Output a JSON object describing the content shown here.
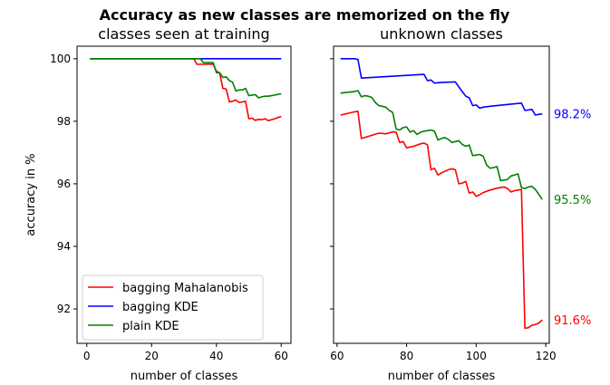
{
  "figure": {
    "suptitle": "Accuracy as new classes are memorized on the fly"
  },
  "chart_data": [
    {
      "type": "line",
      "title": "classes seen at training",
      "xlabel": "number of classes",
      "ylabel": "accuracy in %",
      "xlim": [
        -3,
        63
      ],
      "ylim": [
        90.9,
        100.4
      ],
      "xticks": [
        0,
        20,
        40,
        60
      ],
      "yticks": [
        92,
        94,
        96,
        98,
        100
      ],
      "grid": false,
      "legend": "lower-left",
      "series": [
        {
          "name": "bagging Mahalanobis",
          "color": "#ff0000",
          "x": [
            1,
            33,
            34,
            39,
            40,
            41,
            42,
            43,
            44,
            45,
            46,
            47,
            48,
            49,
            50,
            51,
            52,
            53,
            54,
            55,
            56,
            57,
            58,
            59,
            60
          ],
          "y": [
            100,
            100,
            99.82,
            99.83,
            99.6,
            99.55,
            99.05,
            99.03,
            98.62,
            98.64,
            98.68,
            98.6,
            98.62,
            98.64,
            98.08,
            98.1,
            98.03,
            98.06,
            98.05,
            98.08,
            98.02,
            98.05,
            98.08,
            98.12,
            98.15
          ]
        },
        {
          "name": "bagging KDE",
          "color": "#0000ff",
          "x": [
            1,
            60
          ],
          "y": [
            100,
            100
          ]
        },
        {
          "name": "plain KDE",
          "color": "#008000",
          "x": [
            1,
            35,
            36,
            39,
            40,
            41,
            42,
            43,
            44,
            45,
            46,
            47,
            48,
            49,
            50,
            51,
            52,
            53,
            54,
            55,
            56,
            57,
            58,
            59,
            60
          ],
          "y": [
            100,
            100,
            99.88,
            99.88,
            99.55,
            99.55,
            99.4,
            99.42,
            99.3,
            99.25,
            98.97,
            99.0,
            99.0,
            99.05,
            98.82,
            98.84,
            98.85,
            98.75,
            98.78,
            98.8,
            98.8,
            98.82,
            98.84,
            98.86,
            98.88
          ]
        }
      ]
    },
    {
      "type": "line",
      "title": "unknown classes",
      "xlabel": "number of classes",
      "ylabel": "",
      "xlim": [
        59,
        121
      ],
      "ylim": [
        90.9,
        100.4
      ],
      "xticks": [
        60,
        80,
        100,
        120
      ],
      "yticks": [
        92,
        94,
        96,
        98,
        100
      ],
      "grid": false,
      "series": [
        {
          "color": "#ff0000",
          "end_label": "91.6%",
          "x": [
            61,
            65,
            66,
            67,
            70,
            72,
            74,
            76,
            77,
            78,
            79,
            80,
            82,
            84,
            85,
            86,
            87,
            88,
            89,
            90,
            92,
            93,
            94,
            95,
            96,
            97,
            98,
            99,
            100,
            101,
            102,
            104,
            106,
            108,
            109,
            110,
            111,
            112,
            113,
            114,
            115,
            116,
            117,
            118,
            119
          ],
          "y": [
            98.2,
            98.3,
            98.32,
            97.45,
            97.55,
            97.62,
            97.6,
            97.66,
            97.65,
            97.32,
            97.35,
            97.15,
            97.2,
            97.28,
            97.3,
            97.25,
            96.45,
            96.5,
            96.28,
            96.35,
            96.45,
            96.48,
            96.45,
            96.0,
            96.02,
            96.08,
            95.7,
            95.74,
            95.6,
            95.65,
            95.72,
            95.8,
            95.86,
            95.9,
            95.85,
            95.74,
            95.78,
            95.8,
            95.82,
            91.38,
            91.4,
            91.48,
            91.5,
            91.55,
            91.65
          ]
        },
        {
          "color": "#0000ff",
          "end_label": "98.2%",
          "x": [
            61,
            65,
            66,
            67,
            85,
            86,
            87,
            88,
            90,
            92,
            94,
            95,
            96,
            97,
            98,
            99,
            100,
            101,
            102,
            104,
            113,
            114,
            115,
            116,
            117,
            118,
            119
          ],
          "y": [
            100,
            100,
            99.98,
            99.38,
            99.5,
            99.3,
            99.32,
            99.22,
            99.24,
            99.25,
            99.26,
            99.1,
            98.95,
            98.8,
            98.75,
            98.5,
            98.52,
            98.42,
            98.45,
            98.48,
            98.58,
            98.35,
            98.36,
            98.38,
            98.2,
            98.22,
            98.24
          ]
        },
        {
          "color": "#008000",
          "end_label": "95.5%",
          "x": [
            61,
            65,
            66,
            67,
            68,
            69,
            70,
            71,
            72,
            73,
            74,
            75,
            76,
            77,
            78,
            79,
            80,
            81,
            82,
            83,
            84,
            85,
            86,
            87,
            88,
            89,
            90,
            91,
            92,
            93,
            94,
            95,
            96,
            97,
            98,
            99,
            100,
            101,
            102,
            103,
            104,
            105,
            106,
            107,
            108,
            109,
            110,
            111,
            112,
            113,
            114,
            115,
            116,
            117,
            118,
            119
          ],
          "y": [
            98.9,
            98.95,
            98.98,
            98.78,
            98.82,
            98.8,
            98.76,
            98.6,
            98.5,
            98.48,
            98.45,
            98.35,
            98.28,
            97.75,
            97.72,
            97.8,
            97.82,
            97.65,
            97.7,
            97.58,
            97.65,
            97.68,
            97.7,
            97.72,
            97.68,
            97.4,
            97.45,
            97.48,
            97.42,
            97.32,
            97.35,
            97.38,
            97.26,
            97.2,
            97.24,
            96.9,
            96.92,
            96.94,
            96.88,
            96.6,
            96.5,
            96.52,
            96.55,
            96.1,
            96.12,
            96.14,
            96.25,
            96.28,
            96.32,
            95.88,
            95.85,
            95.9,
            95.92,
            95.82,
            95.66,
            95.5
          ]
        }
      ]
    }
  ]
}
